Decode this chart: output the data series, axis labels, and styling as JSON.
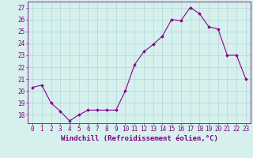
{
  "x": [
    0,
    1,
    2,
    3,
    4,
    5,
    6,
    7,
    8,
    9,
    10,
    11,
    12,
    13,
    14,
    15,
    16,
    17,
    18,
    19,
    20,
    21,
    22,
    23
  ],
  "y": [
    20.3,
    20.5,
    19.0,
    18.3,
    17.5,
    18.0,
    18.4,
    18.4,
    18.4,
    18.4,
    20.0,
    22.2,
    23.3,
    23.9,
    24.6,
    26.0,
    25.9,
    27.0,
    26.5,
    25.4,
    25.2,
    23.0,
    23.0,
    21.0
  ],
  "line_color": "#8B008B",
  "marker": "D",
  "marker_size": 1.8,
  "line_width": 0.8,
  "xlabel": "Windchill (Refroidissement éolien,°C)",
  "xlim": [
    -0.5,
    23.5
  ],
  "ylim": [
    17.3,
    27.5
  ],
  "yticks": [
    18,
    19,
    20,
    21,
    22,
    23,
    24,
    25,
    26,
    27
  ],
  "xtick_labels": [
    "0",
    "1",
    "2",
    "3",
    "4",
    "5",
    "6",
    "7",
    "8",
    "9",
    "10",
    "11",
    "12",
    "13",
    "14",
    "15",
    "16",
    "17",
    "18",
    "19",
    "20",
    "21",
    "22",
    "23"
  ],
  "background_color": "#d6f0ee",
  "grid_color": "#b0d8d8",
  "font_color": "#800080",
  "xlabel_fontsize": 6.5,
  "tick_fontsize": 5.5
}
